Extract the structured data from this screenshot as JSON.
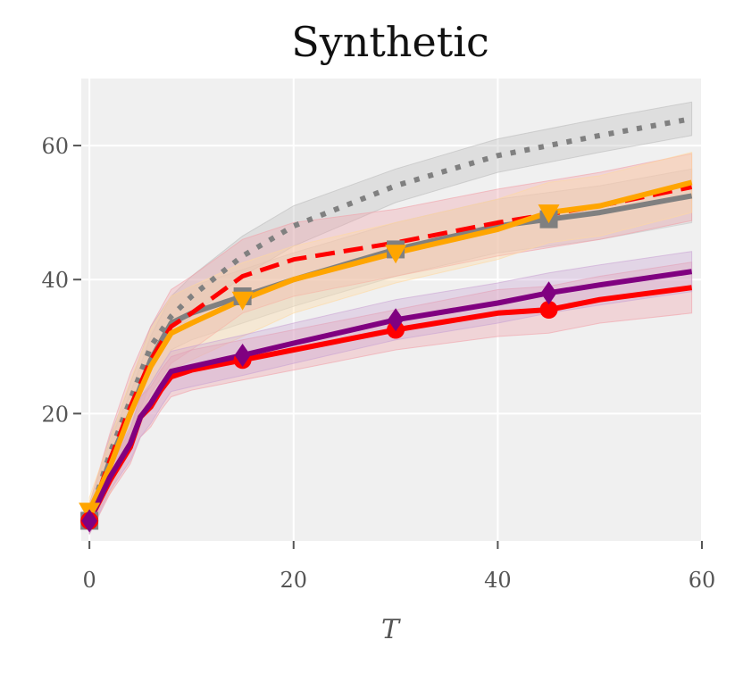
{
  "chart_data": {
    "type": "line",
    "title": "Synthetic",
    "xlabel": "T",
    "ylabel": "",
    "xlim": [
      -0.8,
      60
    ],
    "ylim": [
      1,
      70
    ],
    "xticks": [
      0,
      20,
      40,
      60
    ],
    "yticks": [
      20,
      40,
      60
    ],
    "grid": true,
    "background": "#f0f0f0",
    "series": [
      {
        "name": "gray-dotted",
        "color": "#808080",
        "style": "dotted",
        "marker": "none",
        "band_color": "#bdbdbd",
        "x": [
          0,
          2,
          4,
          6,
          8,
          10,
          15,
          20,
          30,
          40,
          50,
          59
        ],
        "values": [
          4.5,
          14,
          22,
          30,
          34.5,
          37.5,
          43.5,
          48,
          54,
          58.5,
          61.5,
          64
        ],
        "band": [
          2,
          2.5,
          2.5,
          3,
          3,
          3,
          3,
          3,
          2.5,
          2.5,
          2.5,
          2.5
        ]
      },
      {
        "name": "gray-square",
        "color": "#808080",
        "style": "solid",
        "marker": "square",
        "band_color": "#c8c8c8",
        "x": [
          0,
          2,
          4,
          6,
          8,
          10,
          15,
          20,
          30,
          40,
          45,
          50,
          59
        ],
        "values": [
          4,
          13,
          20,
          28,
          33.5,
          35,
          37.5,
          40,
          44.5,
          48,
          49,
          50,
          52.5
        ],
        "band": [
          2,
          3,
          3,
          3.5,
          4,
          4,
          4,
          4,
          4,
          4,
          4,
          4,
          4
        ],
        "markers_at": [
          0,
          15,
          30,
          45
        ]
      },
      {
        "name": "red-dashed",
        "color": "#ff0000",
        "style": "dashed",
        "marker": "none",
        "band_color": "#f2a0a8",
        "x": [
          0,
          2,
          4,
          6,
          8,
          10,
          15,
          20,
          30,
          40,
          50,
          59
        ],
        "values": [
          4.5,
          13,
          21,
          28,
          33,
          35,
          40.5,
          43,
          45.5,
          48.5,
          51,
          53.8
        ],
        "band": [
          2,
          4,
          5,
          5,
          5.5,
          5.5,
          5.5,
          5.5,
          5,
          5,
          5,
          5
        ]
      },
      {
        "name": "orange-triangle",
        "color": "#ffa500",
        "style": "solid",
        "marker": "triangle-down",
        "band_color": "#ffd9a0",
        "x": [
          0,
          2,
          4,
          6,
          8,
          10,
          15,
          20,
          30,
          40,
          45,
          50,
          59
        ],
        "values": [
          5.5,
          12,
          20,
          27,
          32,
          33.5,
          37,
          40,
          44,
          47.5,
          50,
          51,
          54.5
        ],
        "band": [
          2,
          4,
          5,
          5.5,
          5.5,
          5.5,
          5.5,
          5,
          4.5,
          4.5,
          4.5,
          4.5,
          4.5
        ],
        "markers_at": [
          0,
          15,
          30,
          45
        ]
      },
      {
        "name": "red-circle",
        "color": "#ff0000",
        "style": "solid",
        "marker": "circle",
        "band_color": "#f2a0a8",
        "x": [
          0,
          2,
          4,
          5,
          6,
          7,
          8,
          10,
          15,
          20,
          30,
          40,
          45,
          50,
          59
        ],
        "values": [
          4,
          10,
          15,
          19.5,
          21,
          23.5,
          25.5,
          26.5,
          28,
          29.5,
          32.5,
          35,
          35.5,
          37,
          38.8
        ],
        "band": [
          2,
          2,
          2.5,
          3,
          3,
          3,
          3,
          3,
          3,
          3,
          3,
          3.5,
          3.5,
          3.5,
          3.8
        ],
        "markers_at": [
          0,
          15,
          30,
          45
        ]
      },
      {
        "name": "purple-diamond",
        "color": "#800080",
        "style": "solid",
        "marker": "diamond",
        "band_color": "#c9a3d4",
        "x": [
          0,
          2,
          4,
          5,
          6,
          7,
          8,
          10,
          15,
          20,
          30,
          40,
          45,
          50,
          59
        ],
        "values": [
          4,
          10.5,
          15.5,
          19.5,
          21.5,
          24,
          26.3,
          27,
          28.7,
          30.5,
          34,
          36.5,
          38,
          39.2,
          41.2
        ],
        "band": [
          2,
          2,
          2.5,
          3,
          3,
          3,
          3,
          3,
          3,
          3,
          3,
          3,
          3,
          3,
          3
        ],
        "markers_at": [
          0,
          15,
          30,
          45
        ]
      }
    ]
  }
}
